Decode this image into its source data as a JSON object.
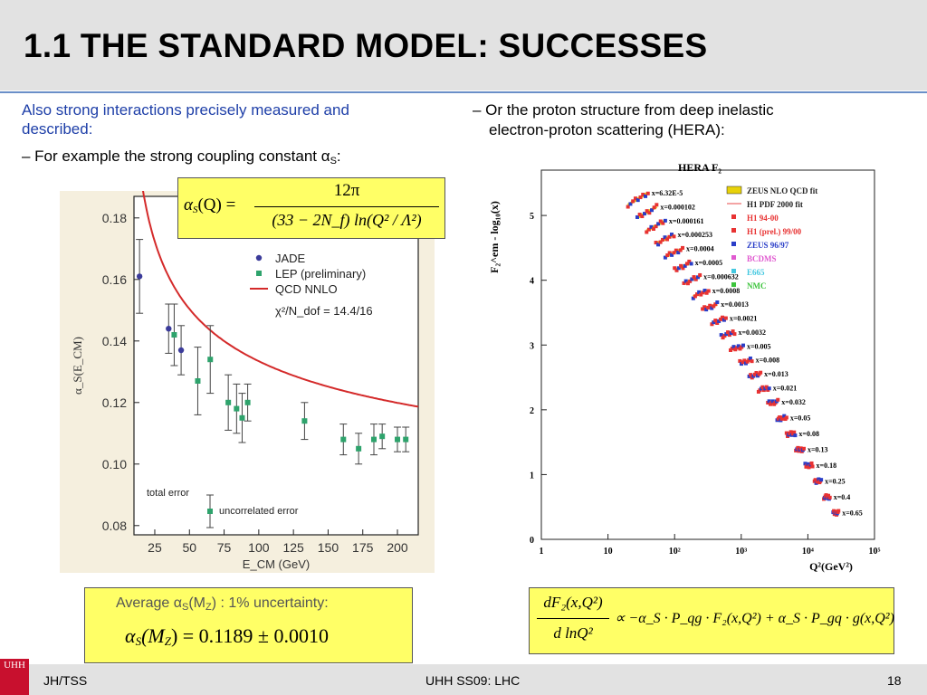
{
  "slide": {
    "title": "1.1 THE STANDARD MODEL: SUCCESSES",
    "left_intro": "Also strong interactions precisely measured and described:",
    "left_bullet_prefix": "– For example the strong coupling constant α",
    "left_bullet_sub": "S",
    "left_bullet_suffix": ":",
    "right_bullet_line1": "– Or the proton structure from deep inelastic",
    "right_bullet_line2": "electron-proton scattering (HERA):"
  },
  "alpha_formula": {
    "lhs": "α",
    "lhs_sub": "S",
    "lhs_arg": "(Q) =",
    "numerator": "12π",
    "denominator": "(33 − 2N_f) ln(Q² / Λ²)"
  },
  "average_box": {
    "label": "Average α",
    "label_sub": "S",
    "label_mid": "(M",
    "label_mid_sub": "Z",
    "label_end": ") : 1% uncertainty:",
    "formula_sym": "α",
    "formula_sub": "S",
    "formula_arg": "(M",
    "formula_arg_sub": "Z",
    "formula_rhs": ") = 0.1189 ± 0.0010"
  },
  "dglap_box": {
    "lhs_num": "dF₂(x,Q²)",
    "lhs_den": "d lnQ²",
    "rhs": "∝ −α_S · P_qg · F₂(x,Q²) + α_S · P_gq · g(x,Q²)"
  },
  "chart_data": [
    {
      "type": "scatter",
      "title": "",
      "xlabel": "E_CM (GeV)",
      "ylabel": "α_S(E_CM)",
      "xlim": [
        10,
        215
      ],
      "ylim": [
        0.077,
        0.187
      ],
      "x_ticks": [
        25,
        50,
        75,
        100,
        125,
        150,
        175,
        200
      ],
      "y_ticks": [
        "0.08",
        "0.10",
        "0.12",
        "0.14",
        "0.16",
        "0.18"
      ],
      "y_tick_values": [
        0.08,
        0.1,
        0.12,
        0.14,
        0.16,
        0.18
      ],
      "legend": [
        {
          "name": "JADE",
          "color": "#3b3b9a",
          "marker": "circle"
        },
        {
          "name": "LEP (preliminary)",
          "color": "#2ea36c",
          "marker": "square"
        },
        {
          "name": "QCD NNLO",
          "color": "#d42a2a",
          "marker": "line"
        }
      ],
      "fit_text": "χ²/N_dof = 14.4/16",
      "notes": {
        "total": "total error",
        "uncorr": "uncorrelated error"
      },
      "series": [
        {
          "name": "JADE",
          "color": "#3b3b9a",
          "points": [
            {
              "x": 14,
              "y": 0.161,
              "err": 0.012
            },
            {
              "x": 35,
              "y": 0.144,
              "err": 0.008
            },
            {
              "x": 44,
              "y": 0.137,
              "err": 0.008
            }
          ]
        },
        {
          "name": "LEP (preliminary)",
          "color": "#2ea36c",
          "points": [
            {
              "x": 39,
              "y": 0.142,
              "err": 0.01
            },
            {
              "x": 56,
              "y": 0.127,
              "err": 0.011
            },
            {
              "x": 65,
              "y": 0.134,
              "err": 0.011
            },
            {
              "x": 78,
              "y": 0.12,
              "err": 0.009
            },
            {
              "x": 84,
              "y": 0.118,
              "err": 0.008
            },
            {
              "x": 88,
              "y": 0.115,
              "err": 0.008
            },
            {
              "x": 92,
              "y": 0.12,
              "err": 0.006
            },
            {
              "x": 133,
              "y": 0.114,
              "err": 0.006
            },
            {
              "x": 161,
              "y": 0.108,
              "err": 0.005
            },
            {
              "x": 172,
              "y": 0.105,
              "err": 0.005
            },
            {
              "x": 183,
              "y": 0.108,
              "err": 0.005
            },
            {
              "x": 189,
              "y": 0.109,
              "err": 0.004
            },
            {
              "x": 200,
              "y": 0.108,
              "err": 0.004
            },
            {
              "x": 206,
              "y": 0.108,
              "err": 0.004
            }
          ]
        }
      ],
      "curve_lambda": 0.215,
      "curve_x_start": 13
    },
    {
      "type": "scatter",
      "title": "HERA F₂",
      "xlabel": "Q²(GeV²)",
      "ylabel": "F₂^em - log₁₀(x)",
      "x_scale": "log",
      "xlim": [
        1,
        100000
      ],
      "ylim": [
        0,
        5.7
      ],
      "x_tick_labels": [
        "1",
        "10",
        "10²",
        "10³",
        "10⁴",
        "10⁵"
      ],
      "y_ticks": [
        0,
        1,
        2,
        3,
        4,
        5
      ],
      "legend": [
        "ZEUS NLO QCD fit",
        "H1 PDF 2000 fit",
        "H1 94-00",
        "H1 (prel.) 99/00",
        "ZEUS 96/97",
        "BCDMS",
        "E665",
        "NMC"
      ],
      "legend_colors": [
        "#e8d20a",
        "#e84a4a",
        "#e83232",
        "#e83232",
        "#2a3ec8",
        "#e05ad0",
        "#44c8e0",
        "#3cc43c"
      ],
      "x_bins": [
        "x=6.32E-5",
        "x=0.000102",
        "x=0.000161",
        "x=0.000253",
        "x=0.0004",
        "x=0.0005",
        "x=0.000632",
        "x=0.0008",
        "x=0.0013",
        "x=0.0021",
        "x=0.0032",
        "x=0.005",
        "x=0.008",
        "x=0.013",
        "x=0.021",
        "x=0.032",
        "x=0.05",
        "x=0.08",
        "x=0.13",
        "x=0.18",
        "x=0.25",
        "x=0.4",
        "x=0.65"
      ]
    }
  ],
  "footer": {
    "left": "JH/TSS",
    "center": "UHH SS09: LHC",
    "right": "18",
    "logo_text": "UHH"
  },
  "colors": {
    "accent_blue": "#1e3fa8",
    "title_bg": "#e2e2e2",
    "formula_box": "#ffff66"
  }
}
